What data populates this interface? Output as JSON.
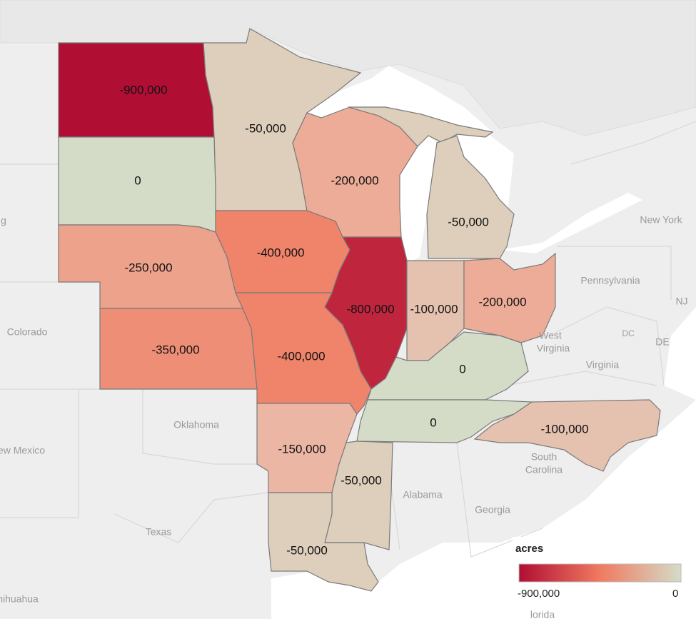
{
  "map": {
    "background_labels": {
      "colorado": "Colorado",
      "oklahoma": "Oklahoma",
      "new_mexico": "ew Mexico",
      "texas": "Texas",
      "chihuahua": "hihuahua",
      "alabama": "Alabama",
      "georgia": "Georgia",
      "south_carolina_1": "South",
      "south_carolina_2": "Carolina",
      "virginia": "Virginia",
      "west_virginia_1": "West",
      "west_virginia_2": "Virginia",
      "pennsylvania": "Pennsylvania",
      "new_york": "New York",
      "nj": "NJ",
      "de": "DE",
      "dc": "DC",
      "wyoming_edge": "g",
      "florida_edge": "lorida"
    },
    "states": {
      "north_dakota": {
        "label": "-900,000",
        "value": -900000
      },
      "minnesota": {
        "label": "-50,000",
        "value": -50000
      },
      "south_dakota": {
        "label": "0",
        "value": 0
      },
      "wisconsin": {
        "label": "-200,000",
        "value": -200000
      },
      "michigan": {
        "label": "-50,000",
        "value": -50000
      },
      "nebraska": {
        "label": "-250,000",
        "value": -250000
      },
      "iowa": {
        "label": "-400,000",
        "value": -400000
      },
      "illinois": {
        "label": "-800,000",
        "value": -800000
      },
      "indiana": {
        "label": "-100,000",
        "value": -100000
      },
      "ohio": {
        "label": "-200,000",
        "value": -200000
      },
      "kansas": {
        "label": "-350,000",
        "value": -350000
      },
      "missouri": {
        "label": "-400,000",
        "value": -400000
      },
      "kentucky": {
        "label": "0",
        "value": 0
      },
      "tennessee": {
        "label": "0",
        "value": 0
      },
      "north_carolina": {
        "label": "-100,000",
        "value": -100000
      },
      "arkansas": {
        "label": "-150,000",
        "value": -150000
      },
      "mississippi": {
        "label": "-50,000",
        "value": -50000
      },
      "louisiana": {
        "label": "-50,000",
        "value": -50000
      }
    }
  },
  "legend": {
    "title": "acres",
    "min_label": "-900,000",
    "max_label": "0",
    "min_color": "#b10e34",
    "mid_color": "#f07a60",
    "max_color": "#d4dcc8"
  }
}
